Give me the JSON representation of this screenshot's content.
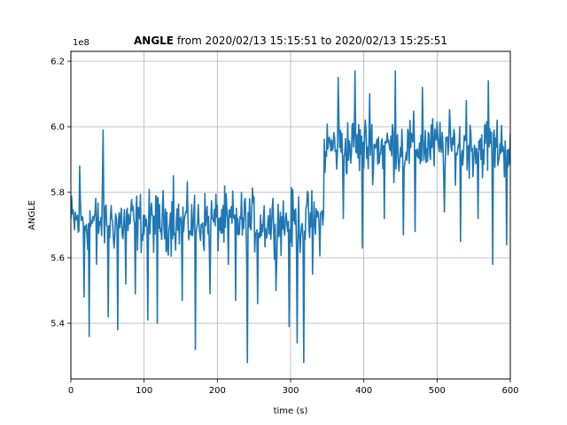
{
  "chart_data": {
    "type": "line",
    "title_bold": "ANGLE",
    "title_rest": " from 2020/02/13 15:15:51 to 2020/02/13 15:25:51",
    "xlabel": "time (s)",
    "ylabel": "ANGLE",
    "y_offset_label": "1e8",
    "xlim": [
      0,
      600
    ],
    "ylim": [
      5.23,
      6.23
    ],
    "x_ticks": [
      0,
      100,
      200,
      300,
      400,
      500,
      600
    ],
    "x_tick_labels": [
      "0",
      "100",
      "200",
      "300",
      "400",
      "500",
      "600"
    ],
    "y_ticks": [
      5.4,
      5.6,
      5.8,
      6.0,
      6.2
    ],
    "y_tick_labels": [
      "5.4",
      "5.6",
      "5.8",
      "6.0",
      "6.2"
    ],
    "grid": true,
    "series": [
      {
        "color": "#1f77b4",
        "x_start": 0,
        "x_end": 600,
        "x_step": 1,
        "segments": [
          {
            "x_from": 0,
            "x_to": 345,
            "mean": 5.71,
            "spread": 0.07
          },
          {
            "x_from": 345,
            "x_to": 600,
            "mean": 5.94,
            "spread": 0.07
          }
        ],
        "spikes": [
          {
            "x": 12,
            "y": 5.88
          },
          {
            "x": 18,
            "y": 5.48
          },
          {
            "x": 25,
            "y": 5.36
          },
          {
            "x": 35,
            "y": 5.58
          },
          {
            "x": 44,
            "y": 5.99
          },
          {
            "x": 51,
            "y": 5.42
          },
          {
            "x": 64,
            "y": 5.38
          },
          {
            "x": 75,
            "y": 5.52
          },
          {
            "x": 88,
            "y": 5.49
          },
          {
            "x": 105,
            "y": 5.41
          },
          {
            "x": 118,
            "y": 5.4
          },
          {
            "x": 140,
            "y": 5.85
          },
          {
            "x": 152,
            "y": 5.47
          },
          {
            "x": 170,
            "y": 5.32
          },
          {
            "x": 190,
            "y": 5.49
          },
          {
            "x": 215,
            "y": 5.58
          },
          {
            "x": 225,
            "y": 5.47
          },
          {
            "x": 241,
            "y": 5.28
          },
          {
            "x": 255,
            "y": 5.46
          },
          {
            "x": 280,
            "y": 5.5
          },
          {
            "x": 298,
            "y": 5.39
          },
          {
            "x": 309,
            "y": 5.34
          },
          {
            "x": 318,
            "y": 5.28
          },
          {
            "x": 330,
            "y": 5.55
          },
          {
            "x": 365,
            "y": 6.15
          },
          {
            "x": 372,
            "y": 5.72
          },
          {
            "x": 388,
            "y": 6.17
          },
          {
            "x": 398,
            "y": 5.63
          },
          {
            "x": 408,
            "y": 6.1
          },
          {
            "x": 428,
            "y": 5.72
          },
          {
            "x": 443,
            "y": 6.17
          },
          {
            "x": 454,
            "y": 5.67
          },
          {
            "x": 470,
            "y": 5.68
          },
          {
            "x": 480,
            "y": 6.12
          },
          {
            "x": 510,
            "y": 5.74
          },
          {
            "x": 532,
            "y": 5.65
          },
          {
            "x": 540,
            "y": 6.08
          },
          {
            "x": 556,
            "y": 5.72
          },
          {
            "x": 570,
            "y": 6.14
          },
          {
            "x": 576,
            "y": 5.58
          },
          {
            "x": 595,
            "y": 5.64
          }
        ]
      }
    ]
  }
}
